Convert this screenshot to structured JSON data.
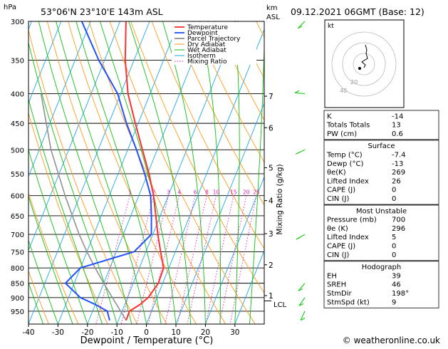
{
  "header": {
    "location": "53°06'N  23°10'E  143m  ASL",
    "datetime": "09.12.2021  06GMT  (Base: 12)",
    "hpa_label": "hPa",
    "km_label": "km",
    "asl_label": "ASL",
    "mixing_label": "Mixing Ratio (g/kg)",
    "lcl_label": "LCL",
    "copyright": "© weatheronline.co.uk"
  },
  "colors": {
    "temperature": "#ff3030",
    "dewpoint": "#2050ff",
    "parcel": "#909090",
    "dry_adiabat": "#ff9a1a",
    "wet_adiabat": "#10c010",
    "isotherm": "#20a8e8",
    "mixing": "#e020c0",
    "wind": "#22cc22"
  },
  "chart_data": {
    "type": "skew-t",
    "xlabel": "Dewpoint / Temperature (°C)",
    "ylabel": "hPa",
    "x_ticks": [
      -40,
      -30,
      -20,
      -10,
      0,
      10,
      20,
      30
    ],
    "x_range": [
      -40,
      40
    ],
    "p_range": [
      300,
      1000
    ],
    "pressure_levels": [
      300,
      350,
      400,
      450,
      500,
      550,
      600,
      650,
      700,
      750,
      800,
      850,
      900,
      950
    ],
    "km_ticks": [
      {
        "km": "7",
        "p": 404
      },
      {
        "km": "6",
        "p": 458
      },
      {
        "km": "5",
        "p": 537
      },
      {
        "km": "4",
        "p": 612
      },
      {
        "km": "3",
        "p": 698
      },
      {
        "km": "2",
        "p": 790
      },
      {
        "km": "1",
        "p": 893
      }
    ],
    "lcl_p": 912,
    "mixing_ratios": [
      "1",
      "2",
      "3",
      "4",
      "6",
      "8",
      "10",
      "15",
      "20",
      "25"
    ],
    "legend": [
      "Temperature",
      "Dewpoint",
      "Parcel Trajectory",
      "Dry Adiabat",
      "Wet Adiabat",
      "Isotherm",
      "Mixing Ratio"
    ],
    "temperature": [
      [
        985,
        -7.4
      ],
      [
        950,
        -7.5
      ],
      [
        925,
        -4.8
      ],
      [
        900,
        -3.0
      ],
      [
        850,
        -1.5
      ],
      [
        800,
        -1.8
      ],
      [
        750,
        -5.0
      ],
      [
        700,
        -8.3
      ],
      [
        650,
        -11.5
      ],
      [
        600,
        -15
      ],
      [
        550,
        -19.5
      ],
      [
        500,
        -25
      ],
      [
        450,
        -31
      ],
      [
        400,
        -37.5
      ],
      [
        350,
        -43
      ],
      [
        300,
        -48
      ]
    ],
    "dewpoint": [
      [
        985,
        -13
      ],
      [
        950,
        -15
      ],
      [
        925,
        -20
      ],
      [
        900,
        -26
      ],
      [
        850,
        -33
      ],
      [
        800,
        -30
      ],
      [
        750,
        -14
      ],
      [
        700,
        -10.5
      ],
      [
        650,
        -13
      ],
      [
        600,
        -16
      ],
      [
        550,
        -21
      ],
      [
        500,
        -27
      ],
      [
        450,
        -34
      ],
      [
        400,
        -41
      ],
      [
        350,
        -52
      ],
      [
        300,
        -63
      ]
    ],
    "parcel": [
      [
        985,
        -7.4
      ],
      [
        912,
        -14
      ],
      [
        850,
        -20
      ],
      [
        800,
        -25
      ],
      [
        750,
        -30
      ],
      [
        700,
        -35
      ],
      [
        600,
        -45
      ],
      [
        500,
        -56
      ],
      [
        400,
        -67
      ]
    ],
    "winds": [
      {
        "p": 300,
        "dir": 225
      },
      {
        "p": 400,
        "dir": 275
      },
      {
        "p": 500,
        "dir": 245
      },
      {
        "p": 700,
        "dir": 240
      },
      {
        "p": 850,
        "dir": 220
      },
      {
        "p": 900,
        "dir": 215
      },
      {
        "p": 950,
        "dir": 205
      }
    ]
  },
  "hodograph": {
    "label": "kt",
    "ring_labels": [
      "20",
      "40"
    ],
    "trace": [
      [
        0,
        -5
      ],
      [
        2,
        -1
      ],
      [
        -3,
        3
      ],
      [
        5,
        8
      ],
      [
        3,
        15
      ],
      [
        4,
        20
      ],
      [
        2,
        27
      ]
    ]
  },
  "indices": {
    "top": [
      {
        "label": "K",
        "value": "-14"
      },
      {
        "label": "Totals Totals",
        "value": "13"
      },
      {
        "label": "PW (cm)",
        "value": "0.6"
      }
    ],
    "surface": {
      "title": "Surface",
      "rows": [
        {
          "label": "Temp (°C)",
          "value": "-7.4"
        },
        {
          "label": "Dewp (°C)",
          "value": "-13"
        },
        {
          "label": "θe(K)",
          "value": "269"
        },
        {
          "label": "Lifted Index",
          "value": "26"
        },
        {
          "label": "CAPE (J)",
          "value": "0"
        },
        {
          "label": "CIN (J)",
          "value": "0"
        }
      ]
    },
    "unstable": {
      "title": "Most Unstable",
      "rows": [
        {
          "label": "Pressure (mb)",
          "value": "700"
        },
        {
          "label": "θe (K)",
          "value": "296"
        },
        {
          "label": "Lifted Index",
          "value": "5"
        },
        {
          "label": "CAPE (J)",
          "value": "0"
        },
        {
          "label": "CIN (J)",
          "value": "0"
        }
      ]
    },
    "hodo": {
      "title": "Hodograph",
      "rows": [
        {
          "label": "EH",
          "value": "39"
        },
        {
          "label": "SREH",
          "value": "46"
        },
        {
          "label": "StmDir",
          "value": "198°"
        },
        {
          "label": "StmSpd (kt)",
          "value": "9"
        }
      ]
    }
  }
}
